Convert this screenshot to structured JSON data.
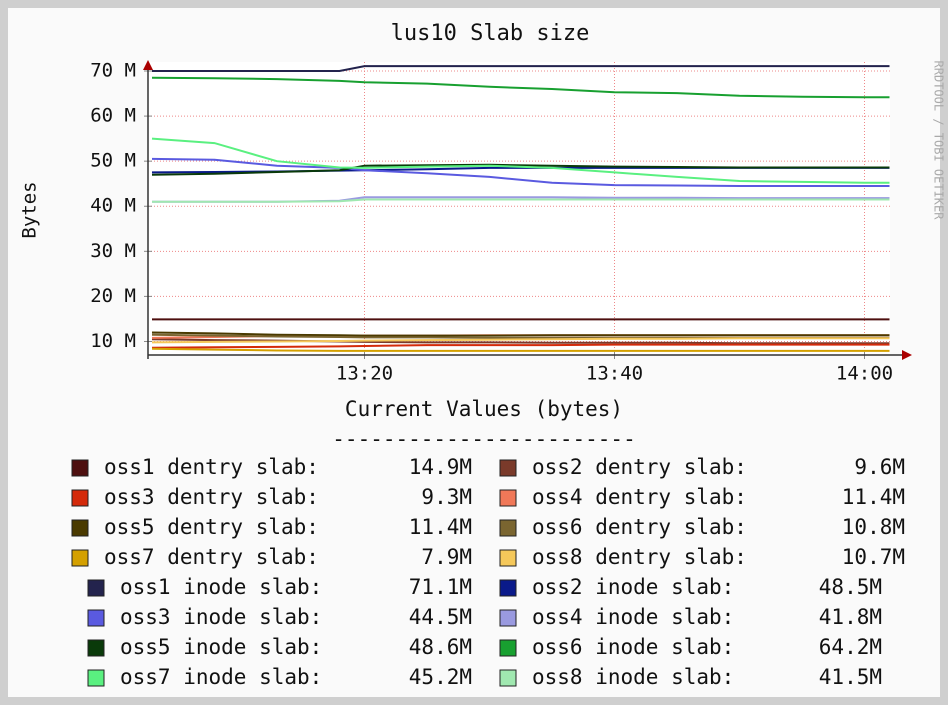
{
  "chart_data": {
    "type": "line",
    "title": "lus10 Slab size",
    "y_label": "Bytes",
    "watermark": "RRDTOOL / TOBI OETIKER",
    "legend_title": "Current Values (bytes)",
    "legend_rule": "------------------------",
    "x": [
      "13:03",
      "13:08",
      "13:13",
      "13:18",
      "13:20",
      "13:25",
      "13:30",
      "13:35",
      "13:40",
      "13:45",
      "13:50",
      "13:55",
      "14:00",
      "14:02"
    ],
    "xlim": [
      "13:03",
      "14:02"
    ],
    "xticks": [
      "13:20",
      "13:40",
      "14:00"
    ],
    "ylim": [
      7,
      72
    ],
    "yticks": [
      {
        "value": 10,
        "label": "10 M"
      },
      {
        "value": 20,
        "label": "20 M"
      },
      {
        "value": 30,
        "label": "30 M"
      },
      {
        "value": 40,
        "label": "40 M"
      },
      {
        "value": 50,
        "label": "50 M"
      },
      {
        "value": 60,
        "label": "60 M"
      },
      {
        "value": 70,
        "label": "70 M"
      }
    ],
    "grid": true,
    "series": [
      {
        "name": "oss1 dentry slab:",
        "color": "#4d0f0f",
        "current_label": "14.9M",
        "values": [
          14.9,
          14.9,
          14.9,
          14.9,
          14.9,
          14.9,
          14.9,
          14.9,
          14.9,
          14.9,
          14.9,
          14.9,
          14.9,
          14.9
        ]
      },
      {
        "name": "oss2 dentry slab:",
        "color": "#7a3a2a",
        "current_label": "9.6M",
        "values": [
          10.5,
          10.3,
          10.2,
          10,
          9.9,
          9.8,
          9.8,
          9.7,
          9.7,
          9.7,
          9.6,
          9.6,
          9.6,
          9.6
        ]
      },
      {
        "name": "oss3 dentry slab:",
        "color": "#d42a0a",
        "current_label": "9.3M",
        "values": [
          8.6,
          8.7,
          8.8,
          8.9,
          9,
          9.2,
          9.2,
          9.2,
          9.3,
          9.3,
          9.3,
          9.3,
          9.3,
          9.3
        ]
      },
      {
        "name": "oss4 dentry slab:",
        "color": "#f07858",
        "current_label": "11.4M",
        "values": [
          10.8,
          11,
          11.2,
          11.2,
          11.3,
          11.3,
          11.4,
          11.4,
          11.4,
          11.4,
          11.4,
          11.4,
          11.4,
          11.4
        ]
      },
      {
        "name": "oss5 dentry slab:",
        "color": "#4a3a00",
        "current_label": "11.4M",
        "values": [
          12,
          11.8,
          11.5,
          11.4,
          11.3,
          11.3,
          11.3,
          11.4,
          11.4,
          11.4,
          11.4,
          11.4,
          11.4,
          11.4
        ]
      },
      {
        "name": "oss6 dentry slab:",
        "color": "#7a6530",
        "current_label": "10.8M",
        "values": [
          11.5,
          11.3,
          11.1,
          11,
          10.9,
          10.9,
          10.8,
          10.8,
          10.8,
          10.8,
          10.8,
          10.8,
          10.8,
          10.8
        ]
      },
      {
        "name": "oss7 dentry slab:",
        "color": "#d4a000",
        "current_label": "7.9M",
        "values": [
          8.4,
          8.2,
          8,
          7.9,
          7.9,
          7.9,
          7.9,
          7.9,
          7.9,
          7.9,
          7.9,
          7.9,
          7.9,
          7.9
        ]
      },
      {
        "name": "oss8 dentry slab:",
        "color": "#f5c85a",
        "current_label": "10.7M",
        "values": [
          9.8,
          9.9,
          10,
          10.1,
          10.2,
          10.3,
          10.4,
          10.5,
          10.6,
          10.6,
          10.7,
          10.7,
          10.7,
          10.7
        ]
      },
      {
        "name": "oss1 inode slab:",
        "color": "#23234d",
        "current_label": "71.1M",
        "values": [
          70,
          70,
          70,
          70,
          71.1,
          71.1,
          71.1,
          71.1,
          71.1,
          71.1,
          71.1,
          71.1,
          71.1,
          71.1
        ]
      },
      {
        "name": "oss2 inode slab:",
        "color": "#0a1a8a",
        "current_label": "48.5M",
        "values": [
          47.5,
          47.6,
          47.7,
          47.9,
          48,
          48.2,
          48.5,
          48.5,
          48.5,
          48.5,
          48.5,
          48.5,
          48.5,
          48.5
        ]
      },
      {
        "name": "oss3 inode slab:",
        "color": "#5a5ae0",
        "current_label": "44.5M",
        "values": [
          50.5,
          50.3,
          49,
          48.5,
          48,
          47.3,
          46.5,
          45.2,
          44.7,
          44.6,
          44.5,
          44.5,
          44.5,
          44.5
        ]
      },
      {
        "name": "oss4 inode slab:",
        "color": "#9a9ae0",
        "current_label": "41.8M",
        "values": [
          41,
          41,
          41,
          41.2,
          42,
          42,
          42,
          42,
          41.9,
          41.9,
          41.8,
          41.8,
          41.8,
          41.8
        ]
      },
      {
        "name": "oss5 inode slab:",
        "color": "#0a3a0a",
        "current_label": "48.6M",
        "values": [
          47,
          47.2,
          47.6,
          48,
          49,
          49.1,
          49.2,
          49,
          48.8,
          48.7,
          48.6,
          48.6,
          48.6,
          48.6
        ]
      },
      {
        "name": "oss6 inode slab:",
        "color": "#18a030",
        "current_label": "64.2M",
        "values": [
          68.5,
          68.4,
          68.2,
          67.8,
          67.5,
          67.2,
          66.5,
          66,
          65.3,
          65.1,
          64.5,
          64.3,
          64.2,
          64.2
        ]
      },
      {
        "name": "oss7 inode slab:",
        "color": "#5af080",
        "current_label": "45.2M",
        "values": [
          55,
          54,
          50,
          48.6,
          48.5,
          48.8,
          49,
          48.5,
          47.5,
          46.5,
          45.6,
          45.4,
          45.2,
          45.2
        ]
      },
      {
        "name": "oss8 inode slab:",
        "color": "#a0e8b0",
        "current_label": "41.5M",
        "values": [
          41,
          41,
          41,
          41.1,
          41.5,
          41.5,
          41.5,
          41.5,
          41.5,
          41.5,
          41.5,
          41.5,
          41.5,
          41.5
        ]
      }
    ]
  }
}
